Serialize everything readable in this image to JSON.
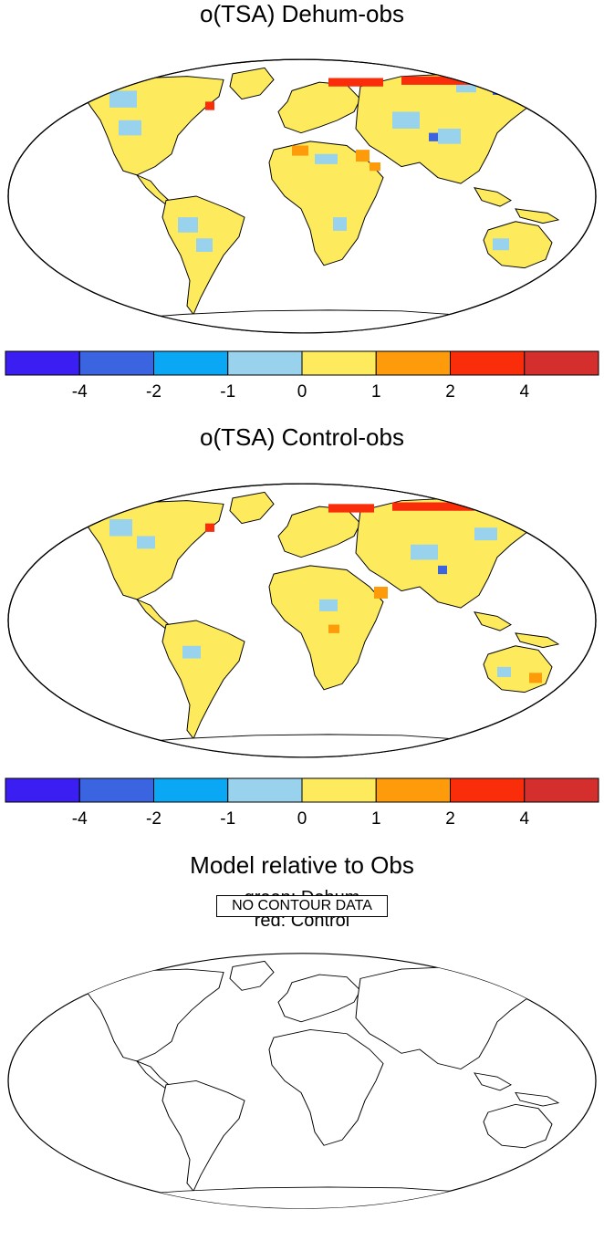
{
  "panels": [
    {
      "title": "o(TSA) Dehum-obs"
    },
    {
      "title": "o(TSA) Control-obs"
    }
  ],
  "colorbar": {
    "colors": [
      "#3b1ef2",
      "#3b64e0",
      "#0aa8f4",
      "#98d2ec",
      "#fdeb5d",
      "#fd9b0a",
      "#fa2d0a",
      "#d42f2d"
    ],
    "tick_labels": [
      "-4",
      "-2",
      "-1",
      "0",
      "1",
      "2",
      "4"
    ]
  },
  "comparison": {
    "title": "Model relative to Obs",
    "line1": "green: Dehum",
    "line2": "red: Control",
    "no_data_label": "NO CONTOUR DATA"
  }
}
